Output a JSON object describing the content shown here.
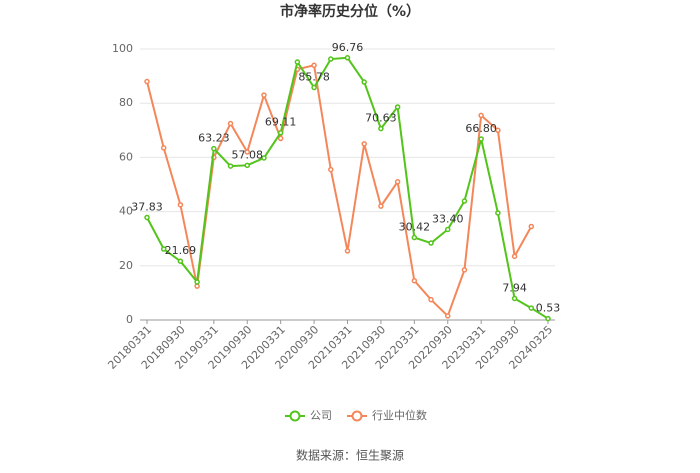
{
  "chart_data": {
    "type": "line",
    "title": "市净率历史分位（%）",
    "source": "数据来源：恒生聚源",
    "categories": [
      "20180331",
      null,
      "20180930",
      null,
      "20190331",
      null,
      "20190930",
      null,
      "20200331",
      null,
      "20200930",
      null,
      "20210331",
      null,
      "20210930",
      null,
      "20220331",
      null,
      "20220930",
      null,
      "20230331",
      null,
      "20230930",
      null,
      "20240325"
    ],
    "series": [
      {
        "name": "公司",
        "color": "#52c41a",
        "values": [
          37.83,
          26.2,
          21.69,
          14,
          63.23,
          56.8,
          57.08,
          59.8,
          69.11,
          95.2,
          85.78,
          96.3,
          96.76,
          87.8,
          70.63,
          78.6,
          30.42,
          28.4,
          33.4,
          43.9,
          66.8,
          39.5,
          7.94,
          4.4,
          0.53
        ],
        "value_labels": [
          "37.83",
          null,
          "21.69",
          null,
          "63.23",
          null,
          "57.08",
          null,
          "69.11",
          null,
          "85.78",
          null,
          "96.76",
          null,
          "70.63",
          null,
          "30.42",
          null,
          "33.40",
          null,
          "66.80",
          null,
          "7.94",
          null,
          "0.53"
        ]
      },
      {
        "name": "行业中位数",
        "color": "#f4875a",
        "values": [
          88,
          63.5,
          42.5,
          12.5,
          60,
          72.5,
          62,
          83,
          67,
          92.5,
          94,
          55.5,
          25.5,
          65,
          42,
          51,
          14.5,
          7.5,
          1.5,
          18.5,
          75.5,
          70,
          23.5,
          34.5,
          null
        ]
      }
    ],
    "ylim": [
      0,
      100
    ],
    "yticks": [
      0,
      20,
      40,
      60,
      80,
      100
    ],
    "grid": true,
    "legend": "bottom"
  }
}
